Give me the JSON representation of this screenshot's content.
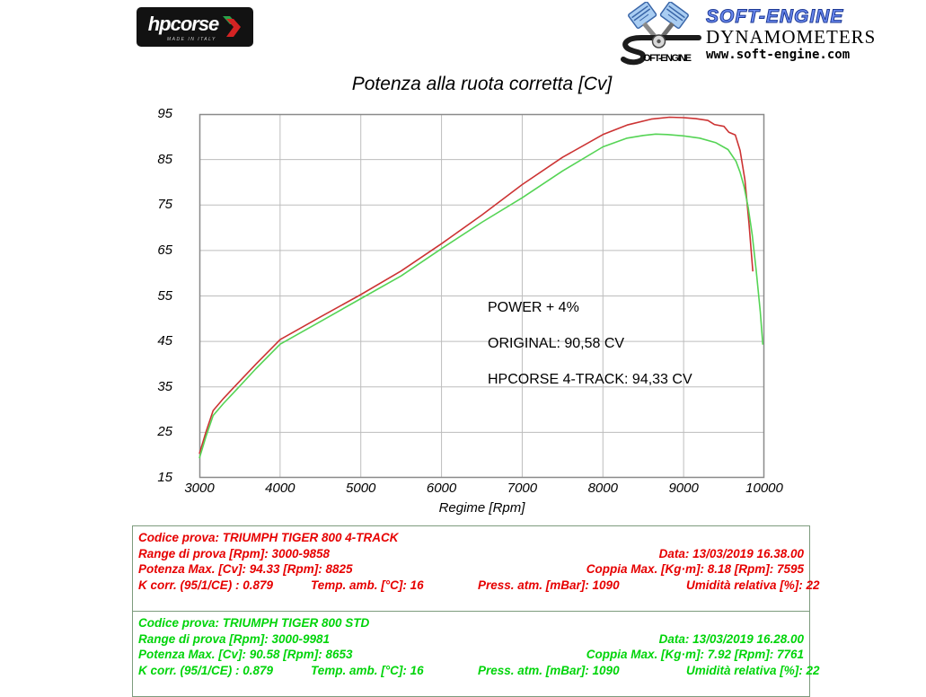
{
  "header": {
    "hpcorse": {
      "brand": "hpcorse",
      "tagline": "MADE IN ITALY"
    },
    "softengine": {
      "brand": "SOFT-ENGINE",
      "subtitle": "DYNAMOMETERS",
      "url": "www.soft-engine.com",
      "s_caption": "OFT-ENGINE"
    }
  },
  "chart_data": {
    "type": "line",
    "title": "Potenza alla ruota corretta [Cv]",
    "xlabel": "Regime [Rpm]",
    "ylabel": "",
    "xlim": [
      3000,
      10000
    ],
    "ylim": [
      15,
      95
    ],
    "x_ticks": [
      3000,
      4000,
      5000,
      6000,
      7000,
      8000,
      9000,
      10000
    ],
    "y_ticks": [
      15,
      25,
      35,
      45,
      55,
      65,
      75,
      85,
      95
    ],
    "grid": true,
    "legend_position": "none",
    "annotations": {
      "power_gain": "POWER + 4%",
      "original": "ORIGINAL: 90,58 CV",
      "hpcorse": "HPCORSE 4-TRACK: 94,33 CV"
    },
    "series": [
      {
        "name": "HPCORSE 4-TRACK",
        "color": "#cc3333",
        "peak_cv": 94.33,
        "peak_rpm": 8825,
        "points": [
          [
            3000,
            20.3
          ],
          [
            3080,
            25.0
          ],
          [
            3170,
            29.8
          ],
          [
            3300,
            32.5
          ],
          [
            3460,
            35.5
          ],
          [
            3700,
            40.0
          ],
          [
            4000,
            45.4
          ],
          [
            4500,
            50.4
          ],
          [
            5000,
            55.3
          ],
          [
            5500,
            60.5
          ],
          [
            6000,
            66.5
          ],
          [
            6500,
            72.8
          ],
          [
            7000,
            79.5
          ],
          [
            7500,
            85.5
          ],
          [
            8000,
            90.5
          ],
          [
            8300,
            92.6
          ],
          [
            8600,
            93.9
          ],
          [
            8825,
            94.3
          ],
          [
            9000,
            94.2
          ],
          [
            9150,
            94.0
          ],
          [
            9300,
            93.6
          ],
          [
            9380,
            92.7
          ],
          [
            9500,
            92.3
          ],
          [
            9560,
            91.0
          ],
          [
            9640,
            90.4
          ],
          [
            9700,
            87.0
          ],
          [
            9760,
            80.5
          ],
          [
            9810,
            71.0
          ],
          [
            9858,
            60.4
          ]
        ]
      },
      {
        "name": "ORIGINAL (STD)",
        "color": "#55d455",
        "peak_cv": 90.58,
        "peak_rpm": 8653,
        "points": [
          [
            3000,
            19.3
          ],
          [
            3080,
            24.0
          ],
          [
            3170,
            28.7
          ],
          [
            3300,
            31.4
          ],
          [
            3460,
            34.4
          ],
          [
            3700,
            39.0
          ],
          [
            4000,
            44.4
          ],
          [
            4500,
            49.4
          ],
          [
            5000,
            54.4
          ],
          [
            5500,
            59.4
          ],
          [
            6000,
            65.4
          ],
          [
            6500,
            71.2
          ],
          [
            7000,
            76.6
          ],
          [
            7500,
            82.5
          ],
          [
            8000,
            87.8
          ],
          [
            8300,
            89.7
          ],
          [
            8500,
            90.3
          ],
          [
            8653,
            90.6
          ],
          [
            8800,
            90.5
          ],
          [
            9000,
            90.2
          ],
          [
            9200,
            89.7
          ],
          [
            9400,
            88.7
          ],
          [
            9550,
            87.2
          ],
          [
            9650,
            84.6
          ],
          [
            9700,
            82.2
          ],
          [
            9750,
            79.0
          ],
          [
            9800,
            74.5
          ],
          [
            9850,
            68.5
          ],
          [
            9900,
            60.5
          ],
          [
            9950,
            51.5
          ],
          [
            9981,
            44.3
          ]
        ]
      }
    ]
  },
  "tables": [
    {
      "id": "4track",
      "text_color": "#e60000",
      "codice": "Codice prova: TRIUMPH TIGER 800 4-TRACK",
      "range": "Range di prova [Rpm]: 3000-9858",
      "data": "Data: 13/03/2019  16.38.00",
      "potenza": "Potenza Max. [Cv]: 94.33   [Rpm]: 8825",
      "coppia": "Coppia Max. [Kg·m]: 8.18  [Rpm]: 7595",
      "kcorr": "K corr. (95/1/CE) : 0.879",
      "temp": "Temp. amb. [°C]: 16",
      "press": "Press. atm. [mBar]: 1090",
      "umidita": "Umidità relativa [%]: 22"
    },
    {
      "id": "std",
      "text_color": "#00d40a",
      "codice": "Codice prova: TRIUMPH TIGER 800 STD",
      "range": "Range di prova [Rpm]: 3000-9981",
      "data": "Data: 13/03/2019  16.28.00",
      "potenza": "Potenza Max. [Cv]: 90.58   [Rpm]: 8653",
      "coppia": "Coppia Max. [Kg·m]: 7.92  [Rpm]: 7761",
      "kcorr": "K corr. (95/1/CE) : 0.879",
      "temp": "Temp. amb. [°C]: 16",
      "press": "Press. atm. [mBar]: 1090",
      "umidita": "Umidità relativa [%]: 22"
    }
  ]
}
